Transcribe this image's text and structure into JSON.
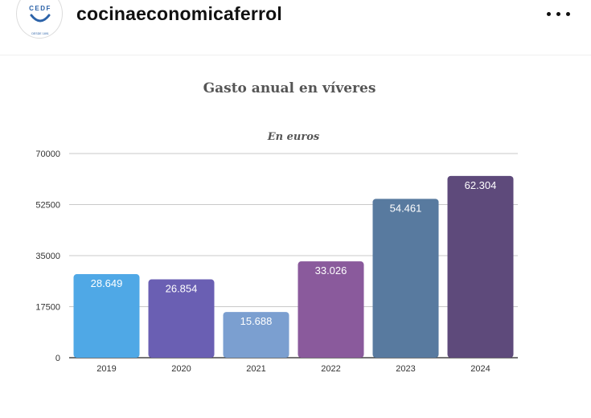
{
  "post": {
    "username": "cocinaeconomicaferrol",
    "avatar_text": "CEDF",
    "avatar_subtext": "DESDE 1891",
    "more_icon": "more-horizontal-icon"
  },
  "chart_data": {
    "type": "bar",
    "title": "Gasto anual en víveres",
    "subtitle": "En euros",
    "categories": [
      "2019",
      "2020",
      "2021",
      "2022",
      "2023",
      "2024"
    ],
    "values": [
      28649,
      26854,
      15688,
      33026,
      54461,
      62304
    ],
    "data_labels": [
      "28.649",
      "26.854",
      "15.688",
      "33.026",
      "54.461",
      "62.304"
    ],
    "colors": [
      "#4fa8e6",
      "#6a5fb3",
      "#7b9fd0",
      "#8a5a9c",
      "#587a9f",
      "#5e4a7b"
    ],
    "yticks": [
      0,
      17500,
      35000,
      52500,
      70000
    ],
    "ylim": [
      0,
      70000
    ],
    "grid": true,
    "legend": "none"
  }
}
